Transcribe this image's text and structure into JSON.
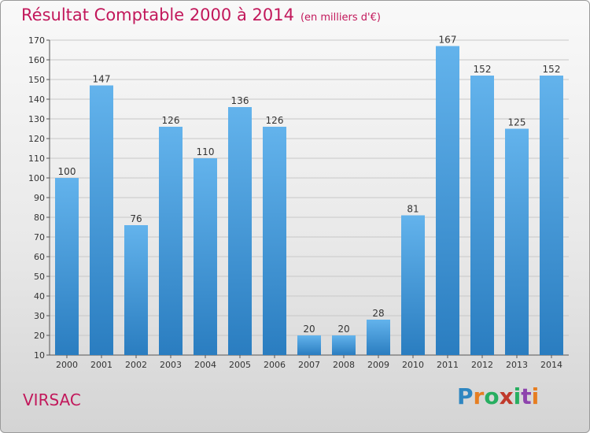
{
  "title": "Résultat Comptable 2000 à 2014",
  "title_unit": "(en milliers d'€)",
  "location": "VIRSAC",
  "logo": {
    "text": "Proxiti",
    "letter_colors": [
      "#2e86c1",
      "#e67e22",
      "#27ae60",
      "#c0392b",
      "#27ae60",
      "#8e44ad",
      "#e67e22"
    ]
  },
  "colors": {
    "title": "#c2185b",
    "bar_top": "#63b3ec",
    "bar_bottom": "#2a7dc0",
    "gridline": "#c8c8c8",
    "axis": "#555555"
  },
  "chart_data": {
    "type": "bar",
    "categories": [
      "2000",
      "2001",
      "2002",
      "2003",
      "2004",
      "2005",
      "2006",
      "2007",
      "2008",
      "2009",
      "2010",
      "2011",
      "2012",
      "2013",
      "2014"
    ],
    "values": [
      100,
      147,
      76,
      126,
      110,
      136,
      126,
      20,
      20,
      28,
      81,
      167,
      152,
      125,
      152
    ],
    "data_labels": [
      "100",
      "147",
      "76",
      "126",
      "110",
      "136",
      "126",
      "20",
      "20",
      "28",
      "81",
      "167",
      "152",
      "125",
      "152"
    ],
    "ylim": [
      10,
      170
    ],
    "yticks": [
      10,
      20,
      30,
      40,
      50,
      60,
      70,
      80,
      90,
      100,
      110,
      120,
      130,
      140,
      150,
      160,
      170
    ],
    "grid": true,
    "title": "Résultat Comptable 2000 à 2014",
    "xlabel": "",
    "ylabel": ""
  }
}
